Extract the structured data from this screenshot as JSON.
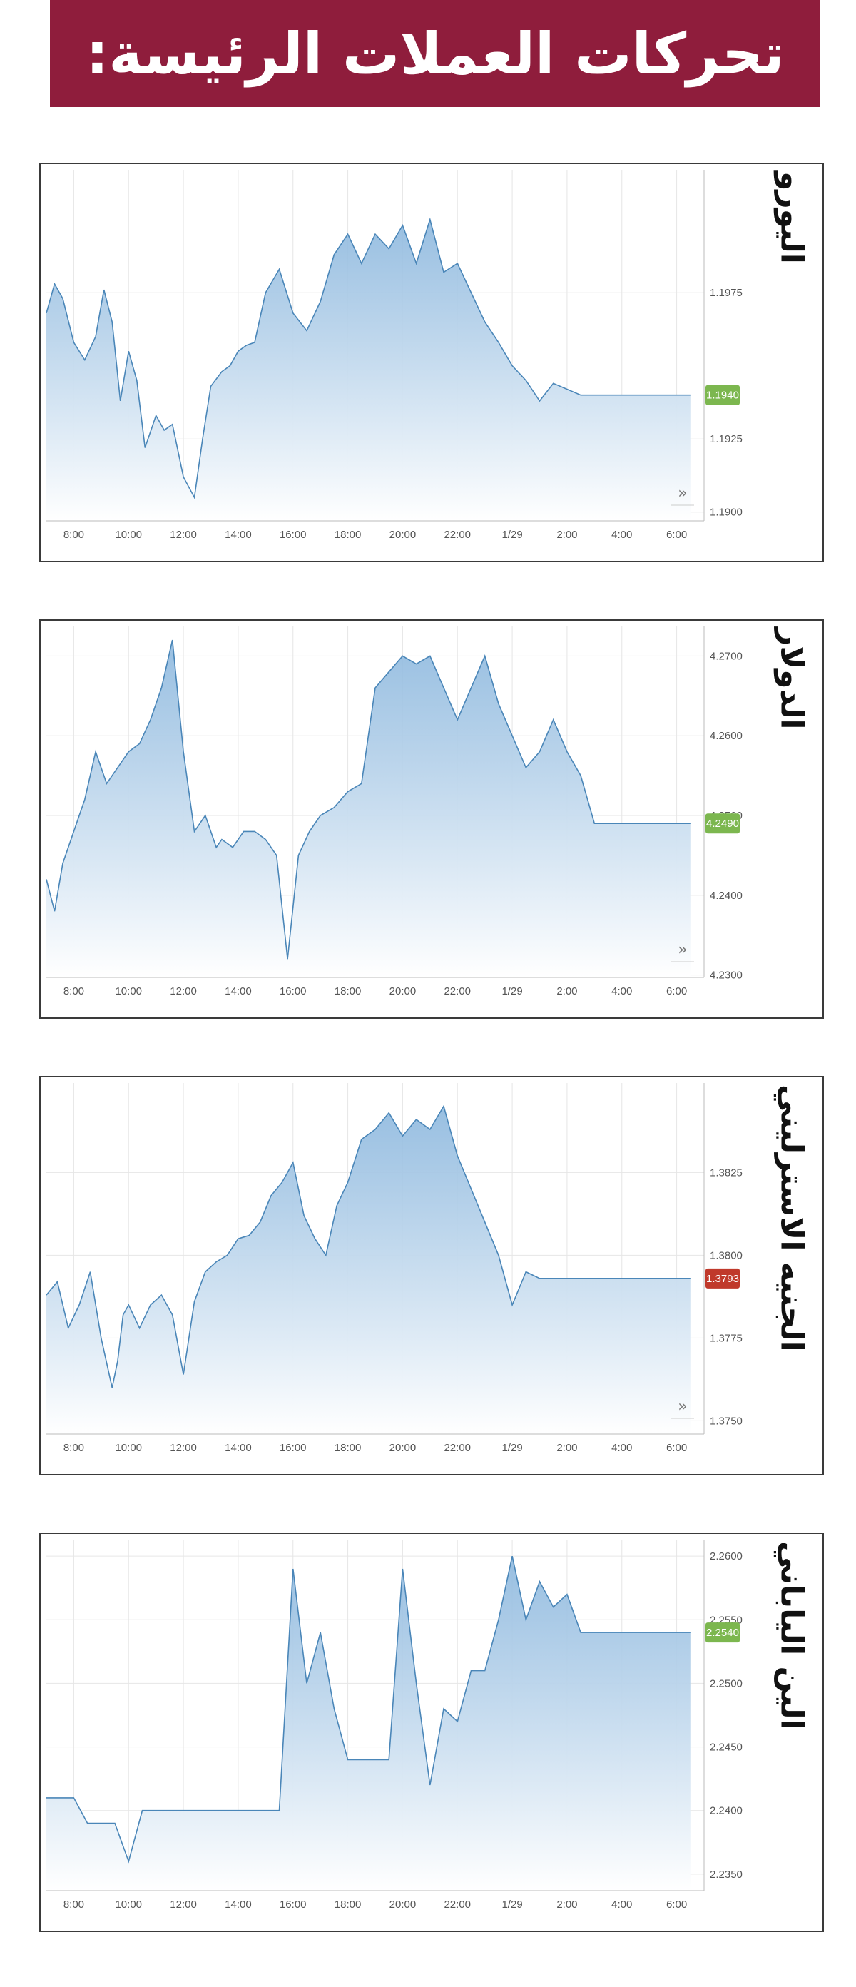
{
  "header": {
    "title": "تحركات العملات الرئيسة:"
  },
  "colors": {
    "banner": "#8f1d3c",
    "line": "#4a86b8",
    "area_top": "#8db8de",
    "area_bottom": "#ffffff",
    "label_green": "#7cb74f",
    "label_red": "#c0392b",
    "grid": "#e6e6e6"
  },
  "icons": {
    "scroll": "chevron-right-icon",
    "scroll_glyph": "»"
  },
  "chart_data": [
    {
      "type": "area",
      "currency": "اليورو",
      "xticks": [
        "8:00",
        "10:00",
        "12:00",
        "14:00",
        "16:00",
        "18:00",
        "20:00",
        "22:00",
        "1/29",
        "2:00",
        "4:00",
        "6:00"
      ],
      "yticks": [
        "1.1975",
        "1.1925",
        "1.1900"
      ],
      "ytick_values": [
        1.1975,
        1.1925,
        1.19
      ],
      "ylim": [
        1.1897,
        1.2017
      ],
      "current": {
        "value": 1.194,
        "label": "1.1940",
        "color": "green"
      },
      "x": [
        0,
        0.3,
        0.6,
        1,
        1.4,
        1.8,
        2.1,
        2.4,
        2.7,
        3,
        3.3,
        3.6,
        4,
        4.3,
        4.6,
        5,
        5.4,
        5.7,
        6,
        6.4,
        6.7,
        7,
        7.3,
        7.6,
        8,
        8.5,
        9,
        9.5,
        10,
        10.5,
        11,
        11.5,
        12,
        12.5,
        13,
        13.5,
        14,
        14.5,
        15,
        15.5,
        16,
        16.5,
        17,
        17.5,
        18,
        18.5,
        19,
        19.5,
        20,
        20.5,
        21,
        21.5,
        22,
        22.5,
        23,
        23.5
      ],
      "y": [
        1.1968,
        1.1978,
        1.1973,
        1.1958,
        1.1952,
        1.196,
        1.1976,
        1.1965,
        1.1938,
        1.1955,
        1.1945,
        1.1922,
        1.1933,
        1.1928,
        1.193,
        1.1912,
        1.1905,
        1.1925,
        1.1943,
        1.1948,
        1.195,
        1.1955,
        1.1957,
        1.1958,
        1.1975,
        1.1983,
        1.1968,
        1.1962,
        1.1972,
        1.1988,
        1.1995,
        1.1985,
        1.1995,
        1.199,
        1.1998,
        1.1985,
        1.2,
        1.1982,
        1.1985,
        1.1975,
        1.1965,
        1.1958,
        1.195,
        1.1945,
        1.1938,
        1.1944,
        1.1942,
        1.194,
        1.194,
        1.194,
        1.194,
        1.194,
        1.194,
        1.194,
        1.194,
        1.194
      ]
    },
    {
      "type": "area",
      "currency": "الدولار",
      "xticks": [
        "8:00",
        "10:00",
        "12:00",
        "14:00",
        "16:00",
        "18:00",
        "20:00",
        "22:00",
        "1/29",
        "2:00",
        "4:00",
        "6:00"
      ],
      "yticks": [
        "4.2700",
        "4.2600",
        "4.2500",
        "4.2400",
        "4.2300"
      ],
      "ytick_values": [
        4.27,
        4.26,
        4.25,
        4.24,
        4.23
      ],
      "ylim": [
        4.2297,
        4.2737
      ],
      "current": {
        "value": 4.249,
        "label": "4.2490",
        "color": "green"
      },
      "x": [
        0,
        0.3,
        0.6,
        1,
        1.4,
        1.8,
        2.2,
        2.6,
        3,
        3.4,
        3.8,
        4.2,
        4.6,
        5,
        5.4,
        5.8,
        6.2,
        6.4,
        6.8,
        7.2,
        7.6,
        8,
        8.4,
        8.8,
        9.2,
        9.6,
        10,
        10.5,
        11,
        11.5,
        12,
        12.5,
        13,
        13.5,
        14,
        14.5,
        15,
        15.5,
        16,
        16.5,
        17,
        17.5,
        18,
        18.5,
        19,
        19.5,
        20,
        20.5,
        21,
        21.5,
        22,
        22.5,
        23,
        23.5
      ],
      "y": [
        4.242,
        4.238,
        4.244,
        4.248,
        4.252,
        4.258,
        4.254,
        4.256,
        4.258,
        4.259,
        4.262,
        4.266,
        4.272,
        4.258,
        4.248,
        4.25,
        4.246,
        4.247,
        4.246,
        4.248,
        4.248,
        4.247,
        4.245,
        4.232,
        4.245,
        4.248,
        4.25,
        4.251,
        4.253,
        4.254,
        4.266,
        4.268,
        4.27,
        4.269,
        4.27,
        4.266,
        4.262,
        4.266,
        4.27,
        4.264,
        4.26,
        4.256,
        4.258,
        4.262,
        4.258,
        4.255,
        4.249,
        4.249,
        4.249,
        4.249,
        4.249,
        4.249,
        4.249,
        4.249
      ]
    },
    {
      "type": "area",
      "currency": "الجنيه الاسترليني",
      "xticks": [
        "8:00",
        "10:00",
        "12:00",
        "14:00",
        "16:00",
        "18:00",
        "20:00",
        "22:00",
        "1/29",
        "2:00",
        "4:00",
        "6:00"
      ],
      "yticks": [
        "1.3825",
        "1.3800",
        "1.3775",
        "1.3750"
      ],
      "ytick_values": [
        1.3825,
        1.38,
        1.3775,
        1.375
      ],
      "ylim": [
        1.3746,
        1.3852
      ],
      "current": {
        "value": 1.3793,
        "label": "1.3793",
        "color": "red"
      },
      "x": [
        0,
        0.4,
        0.8,
        1.2,
        1.6,
        2,
        2.4,
        2.6,
        2.8,
        3,
        3.4,
        3.8,
        4.2,
        4.6,
        5,
        5.4,
        5.8,
        6.2,
        6.6,
        7,
        7.4,
        7.8,
        8.2,
        8.6,
        9,
        9.4,
        9.8,
        10.2,
        10.6,
        11,
        11.5,
        12,
        12.5,
        13,
        13.5,
        14,
        14.5,
        15,
        15.5,
        16,
        16.5,
        17,
        17.5,
        18,
        18.5,
        19,
        19.5,
        20,
        20.5,
        21,
        21.5,
        22,
        22.5,
        23,
        23.5
      ],
      "y": [
        1.3788,
        1.3792,
        1.3778,
        1.3785,
        1.3795,
        1.3775,
        1.376,
        1.3768,
        1.3782,
        1.3785,
        1.3778,
        1.3785,
        1.3788,
        1.3782,
        1.3764,
        1.3786,
        1.3795,
        1.3798,
        1.38,
        1.3805,
        1.3806,
        1.381,
        1.3818,
        1.3822,
        1.3828,
        1.3812,
        1.3805,
        1.38,
        1.3815,
        1.3822,
        1.3835,
        1.3838,
        1.3843,
        1.3836,
        1.3841,
        1.3838,
        1.3845,
        1.383,
        1.382,
        1.381,
        1.38,
        1.3785,
        1.3795,
        1.3793,
        1.3793,
        1.3793,
        1.3793,
        1.3793,
        1.3793,
        1.3793,
        1.3793,
        1.3793,
        1.3793,
        1.3793,
        1.3793
      ]
    },
    {
      "type": "area",
      "currency": "الين الياباني",
      "xticks": [
        "8:00",
        "10:00",
        "12:00",
        "14:00",
        "16:00",
        "18:00",
        "20:00",
        "22:00",
        "1/29",
        "2:00",
        "4:00",
        "6:00"
      ],
      "yticks": [
        "2.2600",
        "2.2550",
        "2.2500",
        "2.2450",
        "2.2400",
        "2.2350"
      ],
      "ytick_values": [
        2.26,
        2.255,
        2.25,
        2.245,
        2.24,
        2.235
      ],
      "ylim": [
        2.2337,
        2.2613
      ],
      "current": {
        "value": 2.254,
        "label": "2.2540",
        "color": "green"
      },
      "x": [
        0,
        0.5,
        1,
        1.5,
        2,
        2.5,
        3,
        3.5,
        4,
        4.5,
        5,
        5.5,
        6,
        6.5,
        7,
        7.5,
        8,
        8.5,
        9,
        9.5,
        10,
        10.5,
        11,
        11.5,
        12,
        12.5,
        13,
        13.5,
        14,
        14.5,
        15,
        15.5,
        16,
        16.5,
        17,
        17.5,
        18,
        18.5,
        19,
        19.5,
        20,
        20.5,
        21,
        21.5,
        22,
        22.5,
        23,
        23.5
      ],
      "y": [
        2.241,
        2.241,
        2.241,
        2.239,
        2.239,
        2.239,
        2.236,
        2.24,
        2.24,
        2.24,
        2.24,
        2.24,
        2.24,
        2.24,
        2.24,
        2.24,
        2.24,
        2.24,
        2.259,
        2.25,
        2.254,
        2.248,
        2.244,
        2.244,
        2.244,
        2.244,
        2.259,
        2.25,
        2.242,
        2.248,
        2.247,
        2.251,
        2.251,
        2.255,
        2.26,
        2.255,
        2.258,
        2.256,
        2.257,
        2.254,
        2.254,
        2.254,
        2.254,
        2.254,
        2.254,
        2.254,
        2.254,
        2.254
      ]
    }
  ]
}
